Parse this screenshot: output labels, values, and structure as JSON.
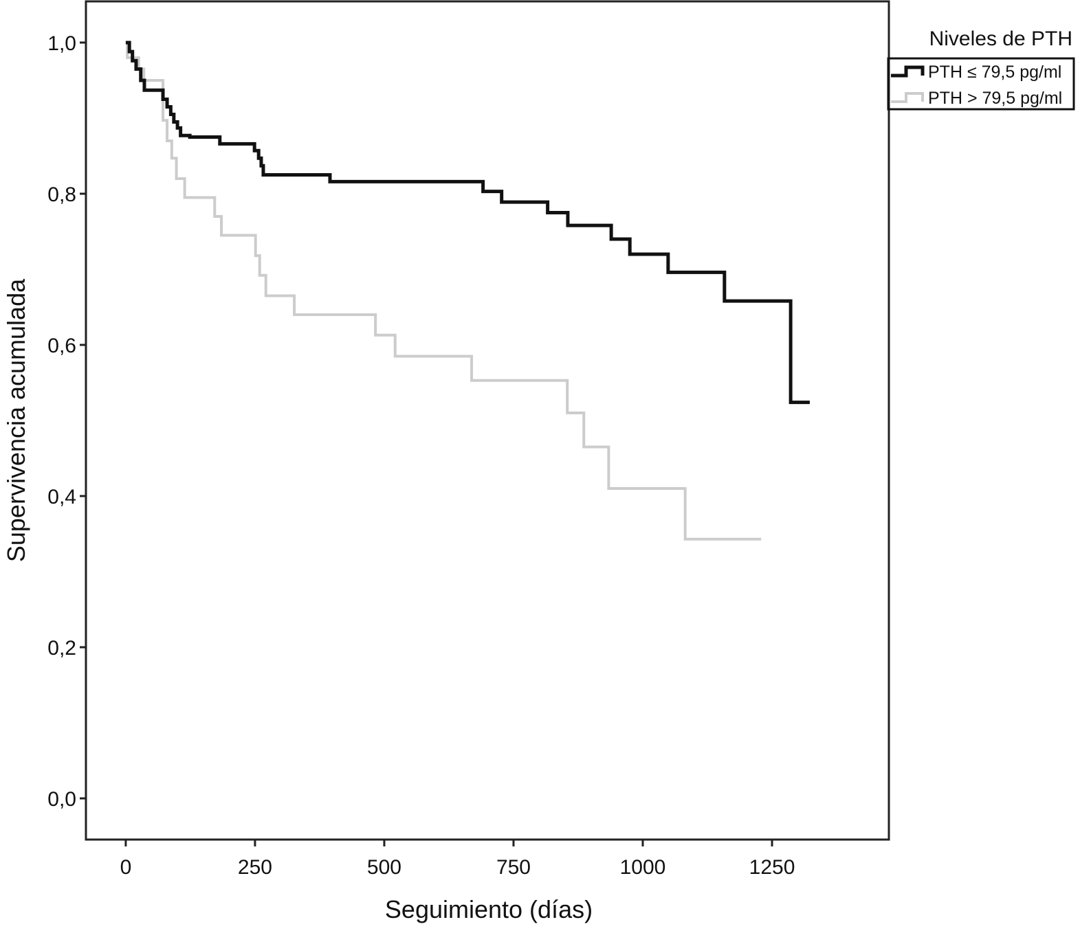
{
  "chart_data": {
    "type": "step",
    "x_label": "Seguimiento (días)",
    "y_label": "Supervivencia acumulada",
    "legend_title": "Niveles de PTH",
    "legend_position": "upper right outside",
    "xlim": [
      -77,
      1476
    ],
    "ylim": [
      -0.0545,
      1.0545
    ],
    "xticks": [
      0,
      250,
      500,
      750,
      1000,
      1250
    ],
    "yticks": [
      {
        "value": 0,
        "label": "0,0"
      },
      {
        "value": 0.2,
        "label": "0,2"
      },
      {
        "value": 0.4,
        "label": "0,4"
      },
      {
        "value": 0.6,
        "label": "0,6"
      },
      {
        "value": 0.8,
        "label": "0,8"
      },
      {
        "value": 1.0,
        "label": "1,0"
      }
    ],
    "series": [
      {
        "name": "PTH ≤ 79,5 pg/ml",
        "color": "#111111",
        "width": 5,
        "x": [
          0,
          7,
          13,
          20,
          29,
          36,
          72,
          80,
          87,
          93,
          100,
          106,
          124,
          182,
          249,
          257,
          262,
          266,
          395,
          691,
          727,
          816,
          855,
          939,
          975,
          1049,
          1158,
          1286,
          1323
        ],
        "values": [
          1.0,
          0.988,
          0.976,
          0.965,
          0.95,
          0.937,
          0.925,
          0.915,
          0.905,
          0.895,
          0.887,
          0.877,
          0.875,
          0.866,
          0.857,
          0.847,
          0.837,
          0.825,
          0.816,
          0.803,
          0.789,
          0.775,
          0.758,
          0.74,
          0.72,
          0.696,
          0.658,
          0.524,
          0.524
        ]
      },
      {
        "name": "PTH > 79,5 pg/ml",
        "color": "#cccccc",
        "width": 4,
        "x": [
          0,
          3,
          25,
          35,
          72,
          80,
          89,
          98,
          114,
          172,
          185,
          251,
          259,
          271,
          326,
          483,
          521,
          669,
          854,
          886,
          934,
          1082,
          1229
        ],
        "values": [
          1.0,
          0.98,
          0.965,
          0.95,
          0.897,
          0.87,
          0.847,
          0.82,
          0.795,
          0.77,
          0.745,
          0.718,
          0.692,
          0.665,
          0.64,
          0.613,
          0.585,
          0.553,
          0.51,
          0.465,
          0.41,
          0.343,
          0.343
        ]
      }
    ]
  }
}
